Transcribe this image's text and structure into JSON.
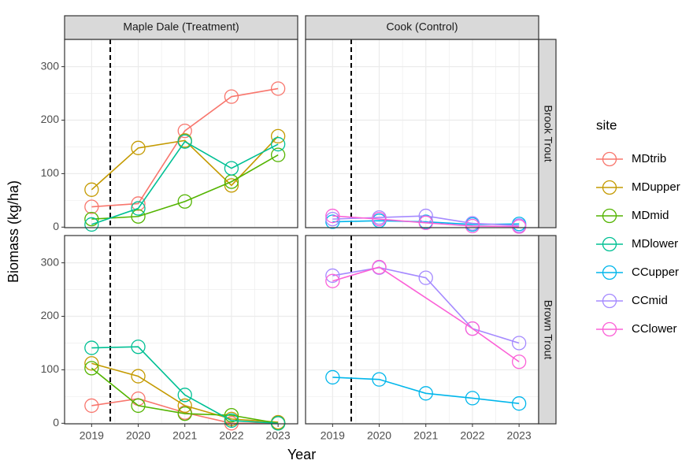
{
  "chart_data": {
    "type": "line",
    "x_label": "Year",
    "y_label": "Biomass (kg/ha)",
    "legend_title": "site",
    "columns": [
      "Maple Dale (Treatment)",
      "Cook (Control)"
    ],
    "rows": [
      "Brook Trout",
      "Brown Trout"
    ],
    "x": [
      2019,
      2020,
      2021,
      2022,
      2023
    ],
    "xlim": [
      2018.42,
      2023.42
    ],
    "xticks": [
      2019,
      2020,
      2021,
      2022,
      2023
    ],
    "ylim": [
      -1,
      351
    ],
    "yticks": [
      0,
      100,
      200,
      300
    ],
    "reference_x": 2019.4,
    "grid": true,
    "series": [
      {
        "name": "MDtrib",
        "color": "#F8766D",
        "column": 0,
        "values": [
          [
            38,
            44,
            180,
            244,
            259
          ],
          [
            33,
            46,
            20,
            0,
            0
          ]
        ]
      },
      {
        "name": "MDupper",
        "color": "#C49A00",
        "column": 0,
        "values": [
          [
            70,
            148,
            162,
            78,
            170
          ],
          [
            112,
            88,
            33,
            8,
            2
          ]
        ]
      },
      {
        "name": "MDmid",
        "color": "#53B400",
        "column": 0,
        "values": [
          [
            15,
            20,
            48,
            85,
            135
          ],
          [
            103,
            33,
            18,
            15,
            0
          ]
        ]
      },
      {
        "name": "MDlower",
        "color": "#00C094",
        "column": 0,
        "values": [
          [
            5,
            35,
            160,
            110,
            155
          ],
          [
            141,
            143,
            53,
            5,
            0
          ]
        ]
      },
      {
        "name": "CCupper",
        "color": "#00B6EB",
        "column": 1,
        "values": [
          [
            10,
            12,
            10,
            5,
            6
          ],
          [
            86,
            82,
            56,
            47,
            37
          ]
        ]
      },
      {
        "name": "CCmid",
        "color": "#A58AFF",
        "column": 1,
        "values": [
          [
            15,
            18,
            21,
            7,
            3
          ],
          [
            276,
            291,
            272,
            177,
            150
          ]
        ]
      },
      {
        "name": "CClower",
        "color": "#FB61D7",
        "column": 1,
        "x": [
          [
            2019,
            2020,
            2021,
            2022,
            2023
          ],
          [
            2019,
            2020,
            2022,
            2023
          ]
        ],
        "values": [
          [
            21,
            15,
            8,
            2,
            1
          ],
          [
            266,
            292,
            177,
            115
          ]
        ]
      }
    ]
  }
}
